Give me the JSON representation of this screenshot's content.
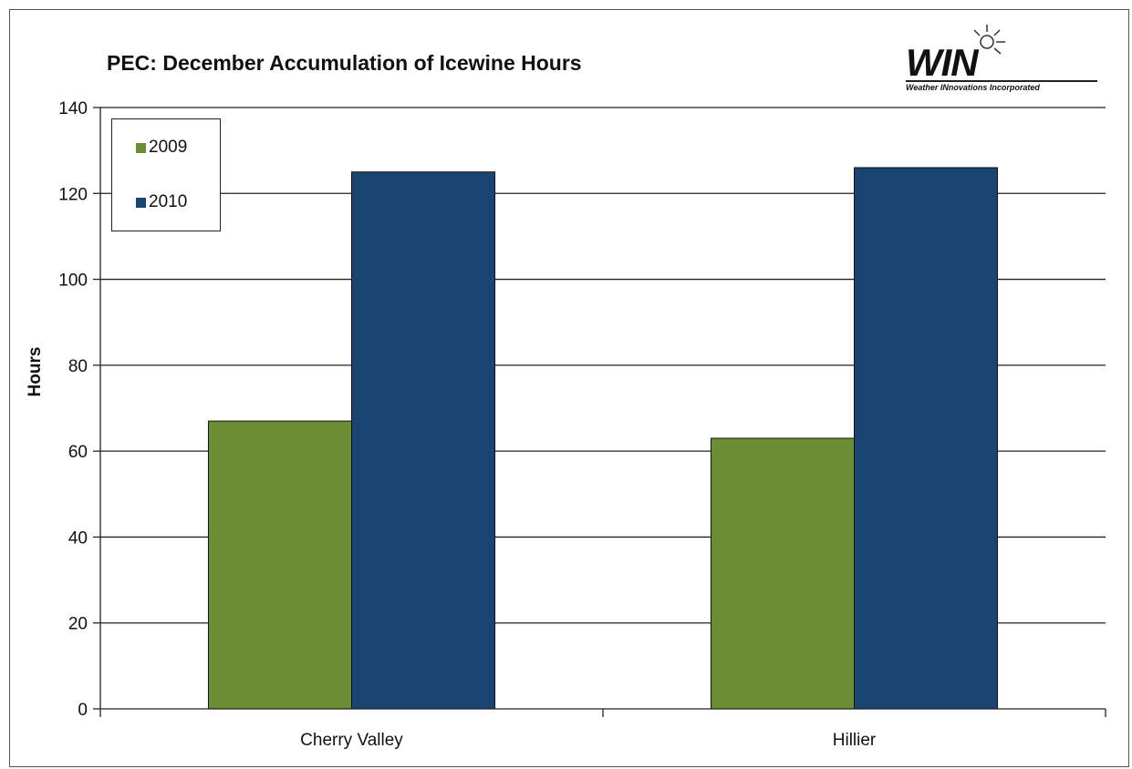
{
  "chart_data": {
    "type": "bar",
    "title": "PEC: December Accumulation of Icewine Hours",
    "xlabel": "",
    "ylabel": "Hours",
    "categories": [
      "Cherry Valley",
      "Hillier"
    ],
    "series": [
      {
        "name": "2009",
        "values": [
          67,
          63
        ],
        "color": "#6b8e35"
      },
      {
        "name": "2010",
        "values": [
          125,
          126
        ],
        "color": "#1a4573"
      }
    ],
    "ylim": [
      0,
      140
    ],
    "yticks": [
      "0",
      "20",
      "40",
      "60",
      "80",
      "100",
      "120",
      "140"
    ],
    "grid": true,
    "legend_position": "top-left"
  },
  "logo": {
    "word": "WIN",
    "tagline": "Weather INnovations Incorporated"
  }
}
